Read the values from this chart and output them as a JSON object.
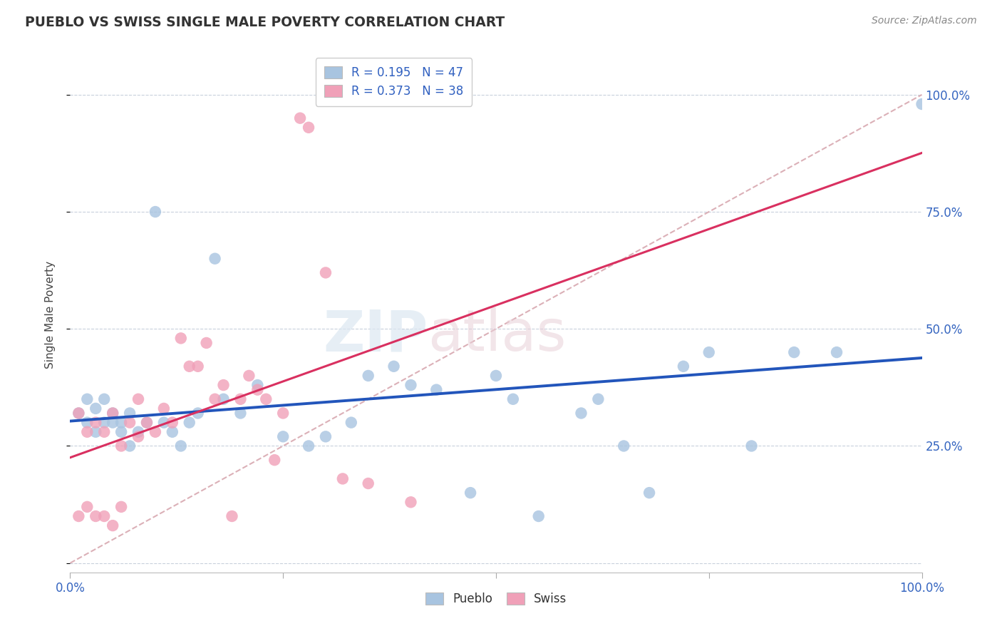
{
  "title": "PUEBLO VS SWISS SINGLE MALE POVERTY CORRELATION CHART",
  "source": "Source: ZipAtlas.com",
  "ylabel": "Single Male Poverty",
  "xlim": [
    0.0,
    1.0
  ],
  "ylim": [
    -0.02,
    1.08
  ],
  "yticks": [
    0.0,
    0.25,
    0.5,
    0.75,
    1.0
  ],
  "xticks": [
    0.0,
    0.25,
    0.5,
    0.75,
    1.0
  ],
  "xtick_labels": [
    "0.0%",
    "",
    "",
    "",
    "100.0%"
  ],
  "ytick_labels_right": [
    "",
    "25.0%",
    "50.0%",
    "75.0%",
    "100.0%"
  ],
  "pueblo_R": 0.195,
  "pueblo_N": 47,
  "swiss_R": 0.373,
  "swiss_N": 38,
  "pueblo_color": "#a8c4e0",
  "swiss_color": "#f0a0b8",
  "pueblo_line_color": "#2255bb",
  "swiss_line_color": "#d93060",
  "diagonal_color": "#d8a8b0",
  "background_color": "#ffffff",
  "watermark_zip": "ZIP",
  "watermark_atlas": "atlas",
  "pueblo_x": [
    0.01,
    0.02,
    0.02,
    0.03,
    0.03,
    0.04,
    0.04,
    0.05,
    0.05,
    0.06,
    0.06,
    0.07,
    0.07,
    0.08,
    0.09,
    0.1,
    0.11,
    0.12,
    0.13,
    0.14,
    0.15,
    0.17,
    0.18,
    0.2,
    0.22,
    0.25,
    0.28,
    0.3,
    0.33,
    0.35,
    0.38,
    0.4,
    0.43,
    0.47,
    0.5,
    0.52,
    0.55,
    0.6,
    0.62,
    0.65,
    0.68,
    0.72,
    0.75,
    0.8,
    0.85,
    0.9,
    1.0
  ],
  "pueblo_y": [
    0.32,
    0.3,
    0.35,
    0.28,
    0.33,
    0.3,
    0.35,
    0.3,
    0.32,
    0.28,
    0.3,
    0.25,
    0.32,
    0.28,
    0.3,
    0.75,
    0.3,
    0.28,
    0.25,
    0.3,
    0.32,
    0.65,
    0.35,
    0.32,
    0.38,
    0.27,
    0.25,
    0.27,
    0.3,
    0.4,
    0.42,
    0.38,
    0.37,
    0.15,
    0.4,
    0.35,
    0.1,
    0.32,
    0.35,
    0.25,
    0.15,
    0.42,
    0.45,
    0.25,
    0.45,
    0.45,
    0.98
  ],
  "swiss_x": [
    0.01,
    0.01,
    0.02,
    0.02,
    0.03,
    0.03,
    0.04,
    0.04,
    0.05,
    0.05,
    0.06,
    0.06,
    0.07,
    0.08,
    0.08,
    0.09,
    0.1,
    0.11,
    0.12,
    0.13,
    0.14,
    0.15,
    0.16,
    0.17,
    0.18,
    0.19,
    0.2,
    0.21,
    0.22,
    0.23,
    0.24,
    0.25,
    0.27,
    0.28,
    0.3,
    0.32,
    0.35,
    0.4
  ],
  "swiss_y": [
    0.32,
    0.1,
    0.12,
    0.28,
    0.1,
    0.3,
    0.1,
    0.28,
    0.08,
    0.32,
    0.25,
    0.12,
    0.3,
    0.27,
    0.35,
    0.3,
    0.28,
    0.33,
    0.3,
    0.48,
    0.42,
    0.42,
    0.47,
    0.35,
    0.38,
    0.1,
    0.35,
    0.4,
    0.37,
    0.35,
    0.22,
    0.32,
    0.95,
    0.93,
    0.62,
    0.18,
    0.17,
    0.13
  ]
}
